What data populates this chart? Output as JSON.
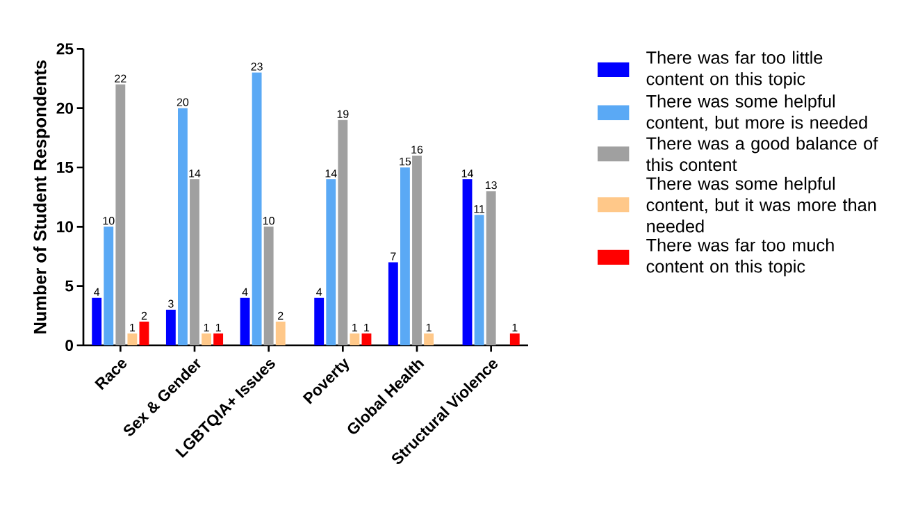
{
  "chart_data": {
    "type": "bar",
    "ylabel": "Number of Student Respondents",
    "categories": [
      "Race",
      "Sex & Gender",
      "LGBTQIA+ Issues",
      "Poverty",
      "Global Health",
      "Structural Violence"
    ],
    "ylim": [
      0,
      25
    ],
    "yticks": [
      0,
      5,
      10,
      15,
      20,
      25
    ],
    "grid": false,
    "legend": "right",
    "series": [
      {
        "name": "There was far too little content on this topic",
        "color": "#0000ff",
        "values": [
          4,
          3,
          4,
          4,
          7,
          14
        ],
        "value_labels": [
          "4",
          "3",
          "4",
          "4",
          "7",
          "14"
        ]
      },
      {
        "name": "There was some helpful content, but more is needed",
        "color": "#5aa9f5",
        "values": [
          10,
          20,
          23,
          14,
          15,
          11
        ],
        "value_labels": [
          "10",
          "20",
          "23",
          "14",
          "15",
          "11"
        ]
      },
      {
        "name": "There was a good balance of this content",
        "color": "#a0a0a0",
        "values": [
          22,
          14,
          10,
          19,
          16,
          13
        ],
        "value_labels": [
          "22",
          "14",
          "10",
          "19",
          "16",
          "13"
        ]
      },
      {
        "name": "There was some helpful content, but it was more than needed",
        "color": "#ffc889",
        "values": [
          1,
          1,
          2,
          1,
          1,
          0
        ],
        "value_labels": [
          "1",
          "1",
          "2",
          "1",
          "1",
          null
        ]
      },
      {
        "name": "There was far too much content on this topic",
        "color": "#ff0000",
        "values": [
          2,
          1,
          0,
          1,
          0,
          1
        ],
        "value_labels": [
          "2",
          "1",
          null,
          "1",
          null,
          "1"
        ]
      }
    ]
  }
}
